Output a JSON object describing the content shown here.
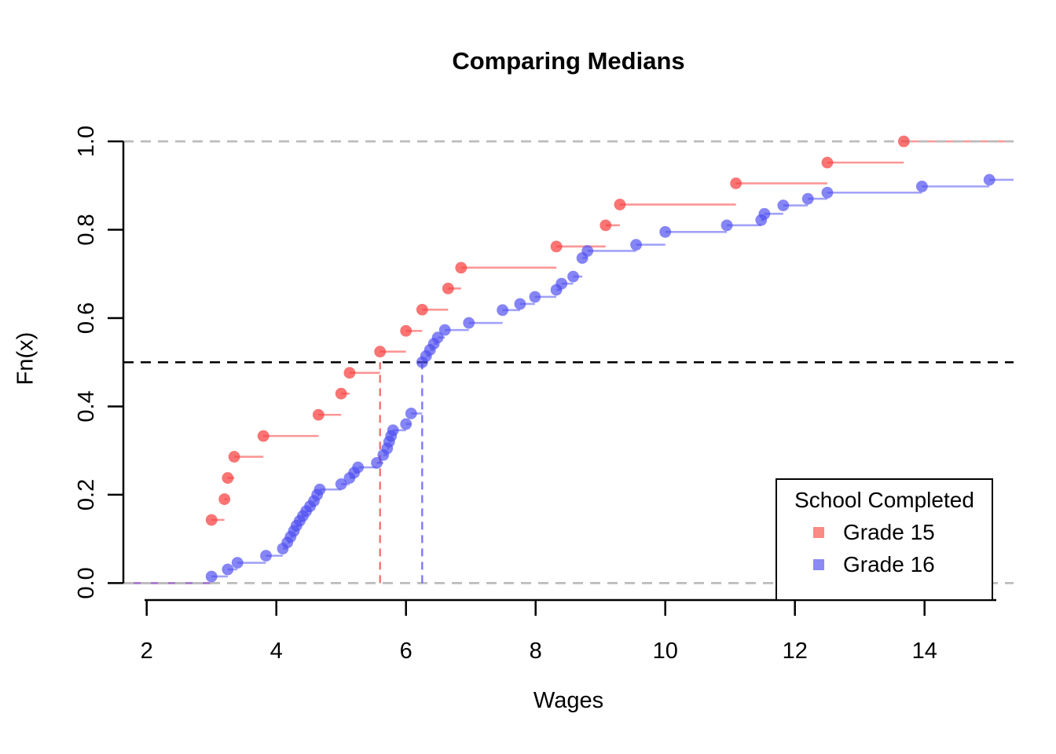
{
  "title": "Comparing Medians",
  "x_axis": {
    "label": "Wages",
    "tick_labels": [
      "2",
      "4",
      "6",
      "8",
      "10",
      "12",
      "14"
    ],
    "tick_values": [
      2,
      4,
      6,
      8,
      10,
      12,
      14
    ]
  },
  "y_axis": {
    "label": "Fn(x)",
    "tick_labels": [
      "0.0",
      "0.2",
      "0.4",
      "0.6",
      "0.8",
      "1.0"
    ],
    "tick_values": [
      0,
      0.2,
      0.4,
      0.6,
      0.8,
      1
    ]
  },
  "legend": {
    "title": "School Completed",
    "items": [
      {
        "label": "Grade 15",
        "color": "#f98a84"
      },
      {
        "label": "Grade 16",
        "color": "#8b8bf2"
      }
    ]
  },
  "chart_data": {
    "type": "line",
    "subtype": "ecdf-step-functions",
    "title": "Comparing Medians",
    "xlabel": "Wages",
    "ylabel": "Fn(x)",
    "xlim": [
      1.64,
      15.37
    ],
    "ylim": [
      0,
      1
    ],
    "grid": false,
    "legend_position": "bottom-right",
    "reference_lines": [
      {
        "axis": "y",
        "value": 0,
        "style": "dashed",
        "color": "#bcbcbc"
      },
      {
        "axis": "y",
        "value": 0.5,
        "style": "dashed",
        "color": "#000000"
      },
      {
        "axis": "y",
        "value": 1,
        "style": "dashed",
        "color": "#bcbcbc"
      }
    ],
    "series": [
      {
        "name": "Grade 15",
        "point_color": "rgba(248,62,62,0.72)",
        "line_color": "rgba(250,80,80,0.60)",
        "median": 5.6,
        "median_line": {
          "x": 5.6,
          "from_y": 0,
          "to_y": 0.5,
          "style": "dashed"
        },
        "points": [
          [
            3.0,
            0.143
          ],
          [
            3.2,
            0.19
          ],
          [
            3.25,
            0.238
          ],
          [
            3.35,
            0.286
          ],
          [
            3.8,
            0.333
          ],
          [
            4.65,
            0.381
          ],
          [
            5.0,
            0.429
          ],
          [
            5.13,
            0.476
          ],
          [
            5.6,
            0.524
          ],
          [
            6.0,
            0.571
          ],
          [
            6.25,
            0.619
          ],
          [
            6.65,
            0.667
          ],
          [
            6.85,
            0.714
          ],
          [
            8.32,
            0.762
          ],
          [
            9.08,
            0.81
          ],
          [
            9.3,
            0.857
          ],
          [
            11.09,
            0.905
          ],
          [
            12.5,
            0.952
          ],
          [
            13.68,
            1.0
          ]
        ]
      },
      {
        "name": "Grade 16",
        "point_color": "rgba(75,75,242,0.68)",
        "line_color": "rgba(95,95,245,0.58)",
        "median": 6.25,
        "median_line": {
          "x": 6.25,
          "from_y": 0,
          "to_y": 0.5,
          "style": "dashed"
        },
        "points": [
          [
            3.0,
            0.015
          ],
          [
            3.25,
            0.031
          ],
          [
            3.4,
            0.046
          ],
          [
            3.84,
            0.062
          ],
          [
            4.1,
            0.078
          ],
          [
            4.17,
            0.092
          ],
          [
            4.22,
            0.105
          ],
          [
            4.27,
            0.118
          ],
          [
            4.31,
            0.13
          ],
          [
            4.36,
            0.141
          ],
          [
            4.41,
            0.152
          ],
          [
            4.46,
            0.163
          ],
          [
            4.52,
            0.174
          ],
          [
            4.58,
            0.186
          ],
          [
            4.63,
            0.2
          ],
          [
            4.67,
            0.212
          ],
          [
            5.0,
            0.224
          ],
          [
            5.13,
            0.238
          ],
          [
            5.2,
            0.25
          ],
          [
            5.26,
            0.262
          ],
          [
            5.55,
            0.272
          ],
          [
            5.65,
            0.29
          ],
          [
            5.71,
            0.305
          ],
          [
            5.74,
            0.32
          ],
          [
            5.77,
            0.333
          ],
          [
            5.8,
            0.346
          ],
          [
            6.0,
            0.36
          ],
          [
            6.08,
            0.384
          ],
          [
            6.25,
            0.5
          ],
          [
            6.31,
            0.514
          ],
          [
            6.37,
            0.528
          ],
          [
            6.43,
            0.542
          ],
          [
            6.49,
            0.556
          ],
          [
            6.6,
            0.573
          ],
          [
            6.97,
            0.589
          ],
          [
            7.49,
            0.618
          ],
          [
            7.76,
            0.632
          ],
          [
            7.99,
            0.648
          ],
          [
            8.32,
            0.664
          ],
          [
            8.4,
            0.678
          ],
          [
            8.58,
            0.694
          ],
          [
            8.72,
            0.736
          ],
          [
            8.8,
            0.752
          ],
          [
            9.55,
            0.766
          ],
          [
            10.0,
            0.795
          ],
          [
            10.95,
            0.81
          ],
          [
            11.48,
            0.822
          ],
          [
            11.53,
            0.836
          ],
          [
            11.82,
            0.855
          ],
          [
            12.2,
            0.87
          ],
          [
            12.5,
            0.884
          ],
          [
            13.96,
            0.898
          ],
          [
            15.0,
            0.913
          ]
        ]
      }
    ]
  }
}
